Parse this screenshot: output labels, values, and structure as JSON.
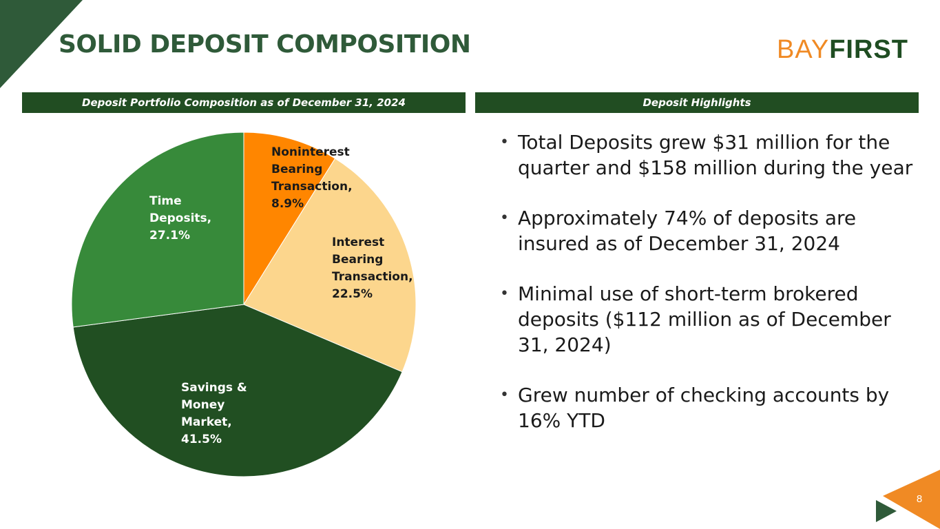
{
  "slide": {
    "title": "SOLID DEPOSIT COMPOSITION",
    "page_number": "8",
    "accent_green": "#2f5a39",
    "accent_orange": "#f08a24"
  },
  "logo": {
    "part1": "BAY",
    "part2": "FIRST"
  },
  "left_panel": {
    "header": "Deposit Portfolio Composition as of December 31, 2024"
  },
  "right_panel": {
    "header": "Deposit Highlights",
    "bullets": [
      "Total Deposits grew $31 million for the quarter and $158 million during the year",
      "Approximately 74% of deposits are insured as of December 31, 2024",
      "Minimal use of short-term brokered deposits ($112 million as of December 31, 2024)",
      "Grew number of checking accounts by 16% YTD"
    ]
  },
  "chart_data": {
    "type": "pie",
    "title": "",
    "slices": [
      {
        "name": "Noninterest Bearing Transaction",
        "value": 8.9,
        "color": "#ff8600",
        "label": "Noninterest\nBearing\nTransaction,\n8.9%",
        "label_color": "#1a1a1a"
      },
      {
        "name": "Interest Bearing Transaction",
        "value": 22.5,
        "color": "#fcd68d",
        "label": "Interest\nBearing\nTransaction,\n22.5%",
        "label_color": "#1a1a1a"
      },
      {
        "name": "Savings & Money Market",
        "value": 41.5,
        "color": "#214f22",
        "label": "Savings &\nMoney\nMarket,\n41.5%",
        "label_color": "#ffffff"
      },
      {
        "name": "Time Deposits",
        "value": 27.1,
        "color": "#378a3a",
        "label": "Time\nDeposits,\n27.1%",
        "label_color": "#ffffff"
      }
    ]
  }
}
